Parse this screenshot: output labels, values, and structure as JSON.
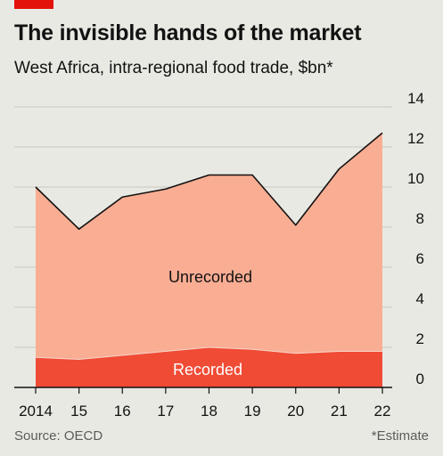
{
  "header": {
    "title": "The invisible hands of the market",
    "subtitle": "West Africa, intra-regional food trade, $bn*"
  },
  "footer": {
    "source": "Source: OECD",
    "note": "*Estimate"
  },
  "colors": {
    "accent": "#e3120b",
    "recorded": "#f04b35",
    "unrecorded": "#f9ad93",
    "background": "#e9e9e3",
    "grid": "#c9c9c2"
  },
  "chart_data": {
    "type": "area",
    "stacked": true,
    "title": "The invisible hands of the market",
    "subtitle": "West Africa, intra-regional food trade, $bn*",
    "x": [
      2014,
      2015,
      2016,
      2017,
      2018,
      2019,
      2020,
      2021,
      2022
    ],
    "x_tick_labels": [
      "2014",
      "15",
      "16",
      "17",
      "18",
      "19",
      "20",
      "21",
      "22"
    ],
    "y_ticks": [
      0,
      2,
      4,
      6,
      8,
      10,
      12,
      14
    ],
    "ylim": [
      0,
      14
    ],
    "y_axis_side": "right",
    "grid": true,
    "series": [
      {
        "name": "Recorded",
        "values": [
          1.5,
          1.4,
          1.6,
          1.8,
          2.0,
          1.9,
          1.7,
          1.8,
          1.8
        ]
      },
      {
        "name": "Unrecorded",
        "values": [
          8.5,
          6.5,
          7.9,
          8.1,
          8.6,
          8.7,
          6.4,
          9.1,
          10.9
        ]
      }
    ],
    "total": [
      10.0,
      7.9,
      9.5,
      9.9,
      10.6,
      10.6,
      8.1,
      10.9,
      12.7
    ]
  }
}
